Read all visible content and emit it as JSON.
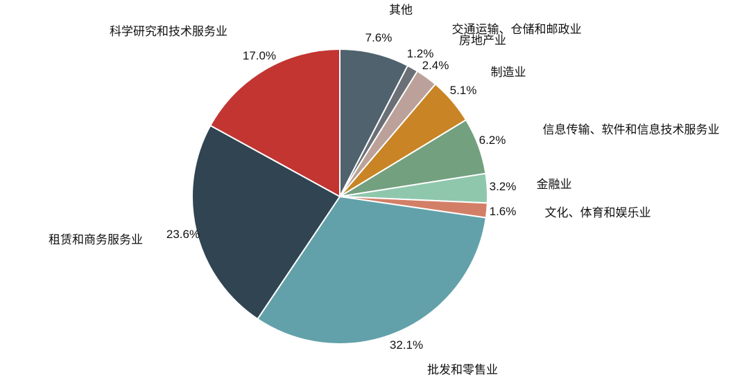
{
  "chart_data": {
    "type": "pie",
    "start_angle_deg": 0,
    "direction": "clockwise",
    "slices": [
      {
        "label": "其他",
        "value": 7.6,
        "value_label": "7.6%",
        "color": "#4f626d"
      },
      {
        "label": "交通运输、仓储和邮政业",
        "value": 1.2,
        "value_label": "1.2%",
        "color": "#6b7077"
      },
      {
        "label": "房地产业",
        "value": 2.4,
        "value_label": "2.4%",
        "color": "#bba199"
      },
      {
        "label": "制造业",
        "value": 5.1,
        "value_label": "5.1%",
        "color": "#c88425"
      },
      {
        "label": "信息传输、软件和信息技术服务业",
        "value": 6.2,
        "value_label": "6.2%",
        "color": "#73a07f"
      },
      {
        "label": "金融业",
        "value": 3.2,
        "value_label": "3.2%",
        "color": "#8fc7ad"
      },
      {
        "label": "文化、体育和娱乐业",
        "value": 1.6,
        "value_label": "1.6%",
        "color": "#d37f67"
      },
      {
        "label": "批发和零售业",
        "value": 32.1,
        "value_label": "32.1%",
        "color": "#62a1aa"
      },
      {
        "label": "租赁和商务服务业",
        "value": 23.6,
        "value_label": "23.6%",
        "color": "#304452"
      },
      {
        "label": "科学研究和技术服务业",
        "value": 17.0,
        "value_label": "17.0%",
        "color": "#c23531"
      }
    ]
  }
}
